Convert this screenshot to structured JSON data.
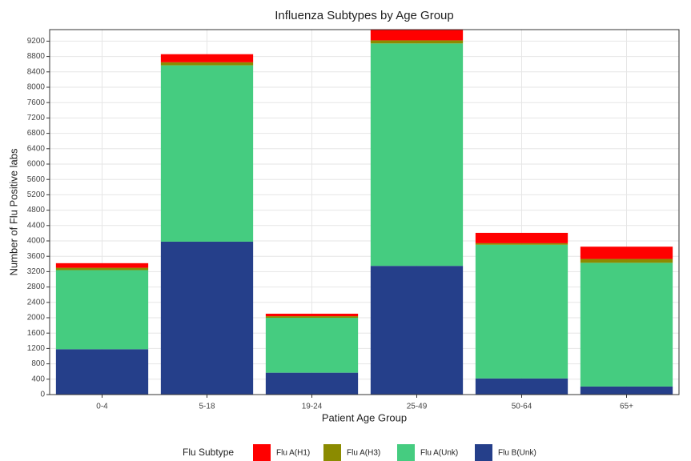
{
  "chart_data": {
    "type": "bar",
    "stacked": true,
    "title": "Influenza Subtypes by Age Group",
    "x_label": "Patient Age Group",
    "y_label": "Number of Flu Positive labs",
    "legend_title": "Flu Subtype",
    "legend_position": "bottom",
    "grid": true,
    "categories": [
      "0-4",
      "5-18",
      "19-24",
      "25-49",
      "50-64",
      "65+"
    ],
    "series": [
      {
        "name": "Flu B(Unk)",
        "color": "#253f8a",
        "values": [
          1180,
          3980,
          570,
          3350,
          420,
          210
        ]
      },
      {
        "name": "Flu A(Unk)",
        "color": "#45cc80",
        "values": [
          2060,
          4590,
          1430,
          5790,
          3480,
          3220
        ]
      },
      {
        "name": "Flu A(H3)",
        "color": "#8b8b00",
        "values": [
          60,
          80,
          40,
          80,
          40,
          100
        ]
      },
      {
        "name": "Flu A(H1)",
        "color": "#ff0000",
        "values": [
          120,
          210,
          65,
          270,
          270,
          320
        ]
      }
    ],
    "legend_order": [
      3,
      2,
      1,
      0
    ],
    "ylim": [
      0,
      9500
    ],
    "yticks": [
      0,
      400,
      800,
      1200,
      1600,
      2000,
      2400,
      2800,
      3200,
      3600,
      4000,
      4400,
      4800,
      5200,
      5600,
      6000,
      6400,
      6800,
      7200,
      7600,
      8000,
      8400,
      8800,
      9200
    ]
  }
}
